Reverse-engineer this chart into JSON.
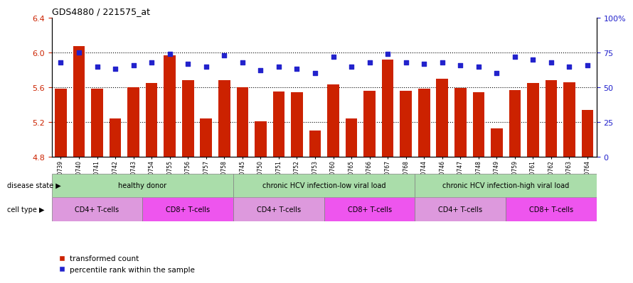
{
  "title": "GDS4880 / 221575_at",
  "samples": [
    "GSM1210739",
    "GSM1210740",
    "GSM1210741",
    "GSM1210742",
    "GSM1210743",
    "GSM1210754",
    "GSM1210755",
    "GSM1210756",
    "GSM1210757",
    "GSM1210758",
    "GSM1210745",
    "GSM1210750",
    "GSM1210751",
    "GSM1210752",
    "GSM1210753",
    "GSM1210760",
    "GSM1210765",
    "GSM1210766",
    "GSM1210767",
    "GSM1210768",
    "GSM1210744",
    "GSM1210746",
    "GSM1210747",
    "GSM1210748",
    "GSM1210749",
    "GSM1210759",
    "GSM1210761",
    "GSM1210762",
    "GSM1210763",
    "GSM1210764"
  ],
  "bar_values": [
    5.58,
    6.07,
    5.58,
    5.24,
    5.6,
    5.65,
    5.97,
    5.68,
    5.24,
    5.68,
    5.6,
    5.21,
    5.55,
    5.54,
    5.1,
    5.63,
    5.24,
    5.56,
    5.92,
    5.56,
    5.58,
    5.7,
    5.59,
    5.54,
    5.13,
    5.57,
    5.65,
    5.68,
    5.66,
    5.34
  ],
  "percentile_values": [
    68,
    75,
    65,
    63,
    66,
    68,
    74,
    67,
    65,
    73,
    68,
    62,
    65,
    63,
    60,
    72,
    65,
    68,
    74,
    68,
    67,
    68,
    66,
    65,
    60,
    72,
    70,
    68,
    65,
    66
  ],
  "ylim_left": [
    4.8,
    6.4
  ],
  "ylim_right": [
    0,
    100
  ],
  "left_ticks": [
    4.8,
    5.2,
    5.6,
    6.0,
    6.4
  ],
  "right_ticks": [
    0,
    25,
    50,
    75,
    100
  ],
  "right_tick_labels": [
    "0",
    "25",
    "50",
    "75",
    "100%"
  ],
  "bar_color": "#cc2200",
  "dot_color": "#2222cc",
  "bg_color": "#f0f0f0",
  "disease_groups": [
    {
      "label": "healthy donor",
      "start": 0,
      "end": 10,
      "color": "#aaddaa"
    },
    {
      "label": "chronic HCV infection-low viral load",
      "start": 10,
      "end": 20,
      "color": "#aaddaa"
    },
    {
      "label": "chronic HCV infection-high viral load",
      "start": 20,
      "end": 30,
      "color": "#aaddaa"
    }
  ],
  "cell_groups": [
    {
      "label": "CD4+ T-cells",
      "start": 0,
      "end": 5,
      "color": "#dd99dd"
    },
    {
      "label": "CD8+ T-cells",
      "start": 5,
      "end": 10,
      "color": "#ee55ee"
    },
    {
      "label": "CD4+ T-cells",
      "start": 10,
      "end": 15,
      "color": "#dd99dd"
    },
    {
      "label": "CD8+ T-cells",
      "start": 15,
      "end": 20,
      "color": "#ee55ee"
    },
    {
      "label": "CD4+ T-cells",
      "start": 20,
      "end": 25,
      "color": "#dd99dd"
    },
    {
      "label": "CD8+ T-cells",
      "start": 25,
      "end": 30,
      "color": "#ee55ee"
    }
  ],
  "disease_label": "disease state",
  "cell_label": "cell type",
  "legend_bar_label": "transformed count",
  "legend_dot_label": "percentile rank within the sample"
}
